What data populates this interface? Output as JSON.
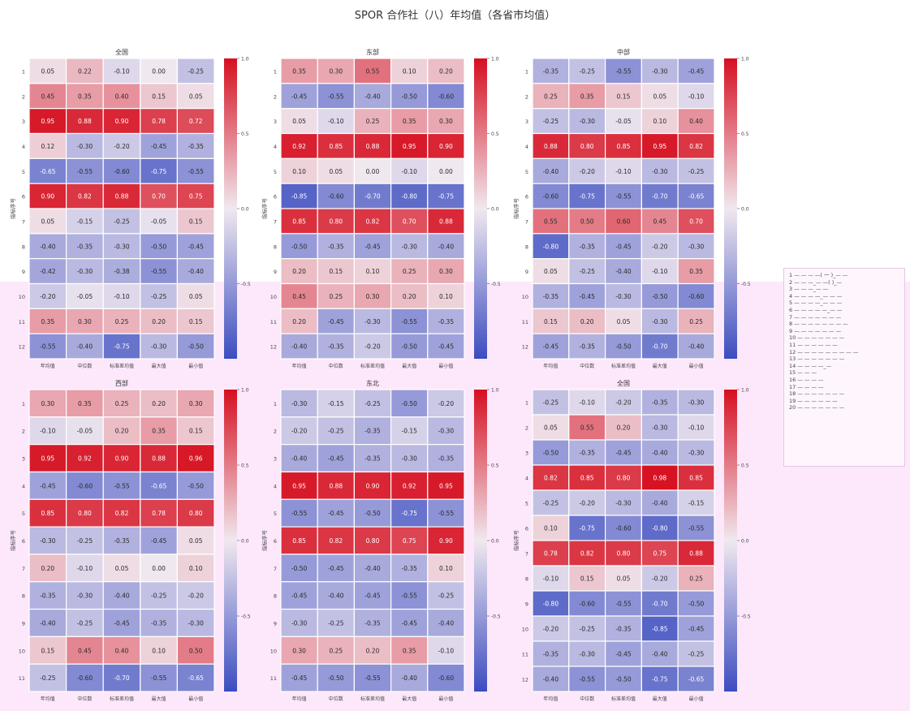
{
  "figure": {
    "title": "SPOR 合作社（八）年均值（各省市均值）",
    "cmap": {
      "low": "#3b4cc0",
      "mid": "#f0e8ef",
      "high": "#d60f1f"
    }
  },
  "legend": {
    "items": [
      "1 — — — —( 一 )_— —",
      "2 — — —_— —( )_—",
      "3 — — —_— —",
      "4 — — — —_— — —",
      "5 — — — —_— — —",
      "6 — — — — —_— —",
      "7 — — — — — — —",
      "8 — — — — — — — —",
      "9 — — — — — — —",
      "10 — — — — — — —",
      "11 — — — — — —",
      "12 — — — — — — — — —",
      "13 — — — — — — —",
      "14 — — — —_—",
      "15 — — —",
      "16 — — — —",
      "17 — — — —",
      "18 — — — — — — —",
      "19 — — — — — —",
      "20 — — — — — — —"
    ]
  },
  "chart_data": [
    {
      "type": "heatmap",
      "title": "全国",
      "xlabel": "",
      "ylabel": "指标序号",
      "x_categories": [
        "年均值",
        "中位数",
        "标准差均值",
        "最大值",
        "最小值"
      ],
      "y_categories": [
        "1",
        "2",
        "3",
        "4",
        "5",
        "6",
        "7",
        "8",
        "9",
        "10",
        "11",
        "12"
      ],
      "value_range": [
        -1,
        1
      ],
      "colorbar_ticks": [
        "1.0",
        "0.5",
        "0.0",
        "-0.5"
      ],
      "values": [
        [
          0.05,
          0.22,
          -0.1,
          0.0,
          -0.25
        ],
        [
          0.45,
          0.35,
          0.4,
          0.15,
          0.05
        ],
        [
          0.95,
          0.88,
          0.9,
          0.78,
          0.72
        ],
        [
          0.12,
          -0.3,
          -0.2,
          -0.45,
          -0.35
        ],
        [
          -0.65,
          -0.55,
          -0.6,
          -0.75,
          -0.55
        ],
        [
          0.9,
          0.82,
          0.88,
          0.7,
          0.75
        ],
        [
          0.05,
          -0.15,
          -0.25,
          -0.05,
          0.15
        ],
        [
          -0.4,
          -0.35,
          -0.3,
          -0.5,
          -0.45
        ],
        [
          -0.42,
          -0.3,
          -0.38,
          -0.55,
          -0.4
        ],
        [
          -0.2,
          -0.05,
          -0.1,
          -0.25,
          0.05
        ],
        [
          0.35,
          0.3,
          0.25,
          0.2,
          0.15
        ],
        [
          -0.55,
          -0.4,
          -0.75,
          -0.3,
          -0.5
        ]
      ]
    },
    {
      "type": "heatmap",
      "title": "东部",
      "xlabel": "",
      "ylabel": "指标序号",
      "x_categories": [
        "年均值",
        "中位数",
        "标准差均值",
        "最大值",
        "最小值"
      ],
      "y_categories": [
        "1",
        "2",
        "3",
        "4",
        "5",
        "6",
        "7",
        "8",
        "9",
        "10",
        "11",
        "12"
      ],
      "value_range": [
        -1,
        1
      ],
      "colorbar_ticks": [
        "1.0",
        "0.5",
        "0.0",
        "-0.5"
      ],
      "values": [
        [
          0.35,
          0.3,
          0.55,
          0.1,
          0.2
        ],
        [
          -0.45,
          -0.55,
          -0.4,
          -0.5,
          -0.6
        ],
        [
          0.05,
          -0.1,
          0.25,
          0.35,
          0.3
        ],
        [
          0.92,
          0.85,
          0.88,
          0.95,
          0.9
        ],
        [
          0.1,
          0.05,
          0.0,
          -0.1,
          0.0
        ],
        [
          -0.85,
          -0.6,
          -0.7,
          -0.8,
          -0.75
        ],
        [
          0.85,
          0.8,
          0.82,
          0.7,
          0.88
        ],
        [
          -0.5,
          -0.35,
          -0.45,
          -0.3,
          -0.4
        ],
        [
          0.2,
          0.15,
          0.1,
          0.25,
          0.3
        ],
        [
          0.45,
          0.25,
          0.3,
          0.2,
          0.1
        ],
        [
          0.2,
          -0.45,
          -0.3,
          -0.55,
          -0.35
        ],
        [
          -0.4,
          -0.35,
          -0.2,
          -0.5,
          -0.45
        ]
      ]
    },
    {
      "type": "heatmap",
      "title": "中部",
      "xlabel": "",
      "ylabel": "指标序号",
      "x_categories": [
        "年均值",
        "中位数",
        "标准差均值",
        "最大值",
        "最小值"
      ],
      "y_categories": [
        "1",
        "2",
        "3",
        "4",
        "5",
        "6",
        "7",
        "8",
        "9",
        "10",
        "11",
        "12"
      ],
      "value_range": [
        -1,
        1
      ],
      "colorbar_ticks": [
        "1.0",
        "0.5",
        "0.0",
        "-0.5"
      ],
      "values": [
        [
          -0.35,
          -0.25,
          -0.55,
          -0.3,
          -0.45
        ],
        [
          0.25,
          0.35,
          0.15,
          0.05,
          -0.1
        ],
        [
          -0.25,
          -0.3,
          -0.05,
          0.1,
          0.4
        ],
        [
          0.88,
          0.8,
          0.85,
          0.95,
          0.82
        ],
        [
          -0.4,
          -0.2,
          -0.1,
          -0.3,
          -0.25
        ],
        [
          -0.6,
          -0.75,
          -0.55,
          -0.7,
          -0.65
        ],
        [
          0.55,
          0.5,
          0.6,
          0.45,
          0.7
        ],
        [
          -0.8,
          -0.35,
          -0.45,
          -0.2,
          -0.3
        ],
        [
          0.05,
          -0.25,
          -0.4,
          -0.1,
          0.35
        ],
        [
          -0.35,
          -0.45,
          -0.3,
          -0.5,
          -0.6
        ],
        [
          0.15,
          0.2,
          0.05,
          -0.3,
          0.25
        ],
        [
          -0.45,
          -0.35,
          -0.5,
          -0.7,
          -0.4
        ]
      ]
    },
    {
      "type": "heatmap",
      "title": "西部",
      "xlabel": "",
      "ylabel": "指标序号",
      "x_categories": [
        "年均值",
        "中位数",
        "标准差均值",
        "最大值",
        "最小值"
      ],
      "y_categories": [
        "1",
        "2",
        "3",
        "4",
        "5",
        "6",
        "7",
        "8",
        "9",
        "10",
        "11"
      ],
      "value_range": [
        -1,
        1
      ],
      "colorbar_ticks": [
        "1.0",
        "0.5",
        "0.0",
        "-0.5"
      ],
      "values": [
        [
          0.3,
          0.35,
          0.25,
          0.2,
          0.3
        ],
        [
          -0.1,
          -0.05,
          0.2,
          0.35,
          0.15
        ],
        [
          0.95,
          0.92,
          0.9,
          0.88,
          0.96
        ],
        [
          -0.45,
          -0.6,
          -0.55,
          -0.65,
          -0.5
        ],
        [
          0.85,
          0.8,
          0.82,
          0.78,
          0.8
        ],
        [
          -0.3,
          -0.25,
          -0.35,
          -0.45,
          0.05
        ],
        [
          0.2,
          -0.1,
          0.05,
          0.0,
          0.1
        ],
        [
          -0.35,
          -0.3,
          -0.4,
          -0.25,
          -0.2
        ],
        [
          -0.4,
          -0.25,
          -0.45,
          -0.35,
          -0.3
        ],
        [
          0.15,
          0.45,
          0.4,
          0.1,
          0.5
        ],
        [
          -0.25,
          -0.6,
          -0.7,
          -0.55,
          -0.65
        ]
      ]
    },
    {
      "type": "heatmap",
      "title": "东北",
      "xlabel": "",
      "ylabel": "指标序号",
      "x_categories": [
        "年均值",
        "中位数",
        "标准差均值",
        "最大值",
        "最小值"
      ],
      "y_categories": [
        "1",
        "2",
        "3",
        "4",
        "5",
        "6",
        "7",
        "8",
        "9",
        "10",
        "11"
      ],
      "value_range": [
        -1,
        1
      ],
      "colorbar_ticks": [
        "1.0",
        "0.5",
        "0.0",
        "-0.5"
      ],
      "values": [
        [
          -0.3,
          -0.15,
          -0.25,
          -0.5,
          -0.2
        ],
        [
          -0.2,
          -0.25,
          -0.35,
          -0.15,
          -0.3
        ],
        [
          -0.4,
          -0.45,
          -0.35,
          -0.3,
          -0.35
        ],
        [
          0.95,
          0.88,
          0.9,
          0.92,
          0.95
        ],
        [
          -0.55,
          -0.45,
          -0.5,
          -0.75,
          -0.55
        ],
        [
          0.85,
          0.82,
          0.8,
          0.75,
          0.9
        ],
        [
          -0.5,
          -0.45,
          -0.4,
          -0.35,
          0.1
        ],
        [
          -0.45,
          -0.4,
          -0.45,
          -0.55,
          -0.25
        ],
        [
          -0.3,
          -0.25,
          -0.35,
          -0.45,
          -0.4
        ],
        [
          0.3,
          0.25,
          0.2,
          0.35,
          -0.1
        ],
        [
          -0.45,
          -0.5,
          -0.55,
          -0.4,
          -0.6
        ]
      ]
    },
    {
      "type": "heatmap",
      "title": "全国",
      "xlabel": "",
      "ylabel": "指标序号",
      "x_categories": [
        "年均值",
        "中位数",
        "标准差均值",
        "最大值",
        "最小值"
      ],
      "y_categories": [
        "1",
        "2",
        "3",
        "4",
        "5",
        "6",
        "7",
        "8",
        "9",
        "10",
        "11",
        "12"
      ],
      "value_range": [
        -1,
        1
      ],
      "colorbar_ticks": [
        "1.0",
        "0.5",
        "0.0",
        "-0.5"
      ],
      "values": [
        [
          -0.25,
          -0.1,
          -0.2,
          -0.35,
          -0.3
        ],
        [
          0.05,
          0.55,
          0.2,
          -0.3,
          -0.1
        ],
        [
          -0.5,
          -0.35,
          -0.45,
          -0.4,
          -0.3
        ],
        [
          0.82,
          0.85,
          0.8,
          0.98,
          0.85
        ],
        [
          -0.25,
          -0.2,
          -0.3,
          -0.4,
          -0.15
        ],
        [
          0.1,
          -0.75,
          -0.6,
          -0.8,
          -0.55
        ],
        [
          0.78,
          0.82,
          0.8,
          0.75,
          0.88
        ],
        [
          -0.1,
          0.15,
          0.05,
          -0.2,
          0.25
        ],
        [
          -0.8,
          -0.6,
          -0.55,
          -0.7,
          -0.5
        ],
        [
          -0.2,
          -0.25,
          -0.35,
          -0.85,
          -0.45
        ],
        [
          -0.35,
          -0.3,
          -0.45,
          -0.4,
          -0.25
        ],
        [
          -0.4,
          -0.55,
          -0.5,
          -0.75,
          -0.65
        ]
      ]
    }
  ]
}
